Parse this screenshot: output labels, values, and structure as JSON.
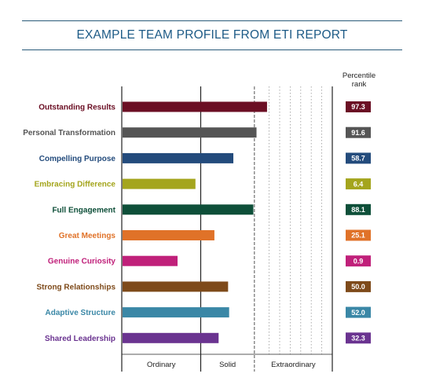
{
  "header": {
    "title": "EXAMPLE TEAM PROFILE FROM ETI REPORT"
  },
  "chart_data": {
    "type": "bar",
    "orientation": "horizontal",
    "title": "EXAMPLE TEAM PROFILE FROM ETI REPORT",
    "xlim": [
      0,
      100
    ],
    "zones": [
      "Ordinary",
      "Solid",
      "Extraordinary"
    ],
    "zone_bounds": [
      37.5,
      63
    ],
    "grid": "dotted vertical lines in Extraordinary zone",
    "percentile_header": "Percentile rank",
    "categories": [
      "Outstanding Results",
      "Personal Transformation",
      "Compelling Purpose",
      "Embracing Difference",
      "Full Engagement",
      "Great Meetings",
      "Genuine Curiosity",
      "Strong Relationships",
      "Adaptive Structure",
      "Shared Leadership"
    ],
    "values": [
      69,
      64,
      53,
      35,
      62.5,
      44,
      26.5,
      50.5,
      51,
      46
    ],
    "percentiles": [
      "97.3",
      "91.6",
      "58.7",
      "6.4",
      "88.1",
      "25.1",
      "0.9",
      "50.0",
      "52.0",
      "32.3"
    ],
    "colors": [
      "#6b0f24",
      "#555555",
      "#234b7c",
      "#a4a51d",
      "#0e4f39",
      "#e07228",
      "#c0207a",
      "#7e4a1a",
      "#3a87a6",
      "#6a3390"
    ]
  }
}
